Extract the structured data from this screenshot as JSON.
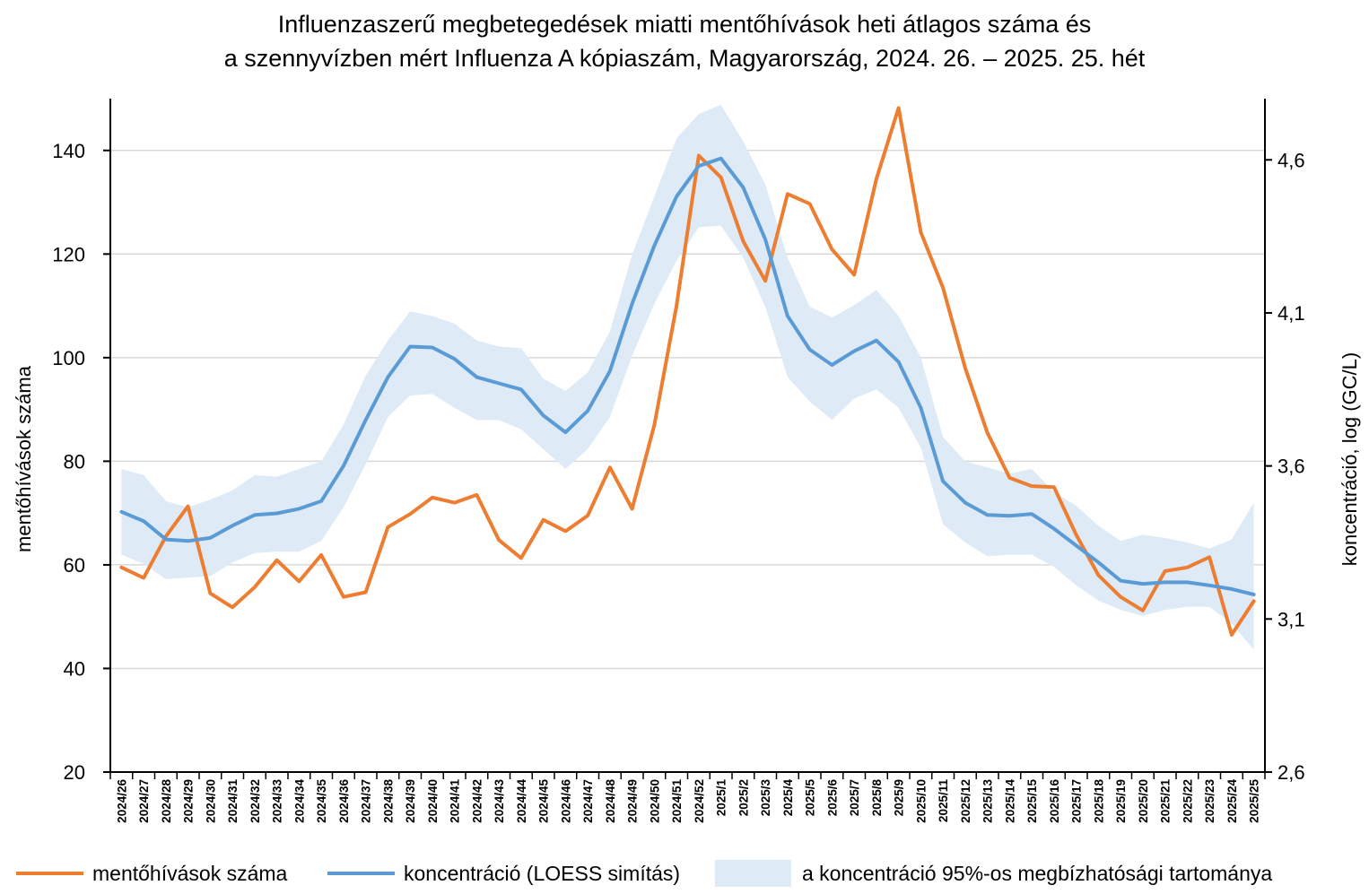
{
  "title_line1": "Influenzaszerű megbetegedések miatti mentőhívások heti átlagos száma és",
  "title_line2": "a szennyvízben mért Influenza A kópiaszám, Magyarország, 2024. 26. – 2025. 25. hét",
  "colors": {
    "calls": "#ED7D31",
    "conc": "#5B9BD5",
    "band": "#DEEBF7",
    "grid": "#D9D9D9"
  },
  "chart_data": {
    "type": "line",
    "title": "Influenzaszerű megbetegedések miatti mentőhívások heti átlagos száma és a szennyvízben mért Influenza A kópiaszám, Magyarország, 2024. 26. – 2025. 25. hét",
    "ylabel": "mentőhívások száma",
    "y2label": "koncentráció, log (GC/L)",
    "ylim": [
      20,
      150
    ],
    "yticks": [
      20,
      40,
      60,
      80,
      100,
      120,
      140
    ],
    "y2lim": [
      2.6,
      4.8
    ],
    "y2ticks": [
      2.6,
      3.1,
      3.6,
      4.1,
      4.6
    ],
    "y2ticklabels": [
      "2,6",
      "3,1",
      "3,6",
      "4,1",
      "4,6"
    ],
    "grid": true,
    "legend_position": "bottom",
    "categories": [
      "2024/26",
      "2024/27",
      "2024/28",
      "2024/29",
      "2024/30",
      "2024/31",
      "2024/32",
      "2024/33",
      "2024/34",
      "2024/35",
      "2024/36",
      "2024/37",
      "2024/38",
      "2024/39",
      "2024/40",
      "2024/41",
      "2024/42",
      "2024/43",
      "2024/44",
      "2024/45",
      "2024/46",
      "2024/47",
      "2024/48",
      "2024/49",
      "2024/50",
      "2024/51",
      "2024/52",
      "2025/1",
      "2025/2",
      "2025/3",
      "2025/4",
      "2025/5",
      "2025/6",
      "2025/7",
      "2025/8",
      "2025/9",
      "2025/10",
      "2025/11",
      "2025/12",
      "2025/13",
      "2025/14",
      "2025/15",
      "2025/16",
      "2025/17",
      "2025/18",
      "2025/19",
      "2025/20",
      "2025/21",
      "2025/22",
      "2025/23",
      "2025/24",
      "2025/25"
    ],
    "series": [
      {
        "name": "mentőhívások száma",
        "axis": "left",
        "color": "#ED7D31",
        "values": [
          59.5,
          57.5,
          65.5,
          71.3,
          54.5,
          51.8,
          55.7,
          60.9,
          56.8,
          61.9,
          53.8,
          54.7,
          67.3,
          69.8,
          73.0,
          72.0,
          73.5,
          64.8,
          61.3,
          68.7,
          66.5,
          69.5,
          78.8,
          70.8,
          87.0,
          110.0,
          139.0,
          134.8,
          122.5,
          114.8,
          131.6,
          129.7,
          120.9,
          116.0,
          134.5,
          148.2,
          124.2,
          113.5,
          98.0,
          85.5,
          76.8,
          75.2,
          75.0,
          65.8,
          58.0,
          53.8,
          51.2,
          58.8,
          59.5,
          61.5,
          46.5,
          53.0
        ]
      },
      {
        "name": "koncentráció (LOESS simítás)",
        "axis": "right",
        "color": "#5B9BD5",
        "values": [
          3.45,
          3.42,
          3.36,
          3.355,
          3.365,
          3.405,
          3.44,
          3.445,
          3.46,
          3.485,
          3.6,
          3.75,
          3.89,
          3.99,
          3.987,
          3.95,
          3.89,
          3.87,
          3.85,
          3.765,
          3.71,
          3.78,
          3.91,
          4.13,
          4.32,
          4.48,
          4.58,
          4.605,
          4.51,
          4.34,
          4.09,
          3.98,
          3.93,
          3.975,
          4.01,
          3.94,
          3.79,
          3.55,
          3.48,
          3.44,
          3.437,
          3.443,
          3.395,
          3.34,
          3.285,
          3.225,
          3.215,
          3.22,
          3.22,
          3.21,
          3.198,
          3.18
        ]
      },
      {
        "name": "a koncentráció 95%-os megbízhatósági tartománya",
        "axis": "right",
        "type": "band",
        "color": "#DEEBF7",
        "lower": [
          3.31,
          3.28,
          3.23,
          3.235,
          3.24,
          3.285,
          3.315,
          3.32,
          3.32,
          3.355,
          3.465,
          3.605,
          3.76,
          3.83,
          3.835,
          3.79,
          3.75,
          3.75,
          3.72,
          3.655,
          3.59,
          3.655,
          3.76,
          3.96,
          4.13,
          4.27,
          4.38,
          4.385,
          4.28,
          4.12,
          3.89,
          3.81,
          3.75,
          3.82,
          3.85,
          3.79,
          3.66,
          3.41,
          3.35,
          3.305,
          3.31,
          3.31,
          3.27,
          3.21,
          3.16,
          3.13,
          3.11,
          3.13,
          3.14,
          3.14,
          3.085,
          3.0
        ],
        "upper": [
          3.59,
          3.57,
          3.485,
          3.465,
          3.49,
          3.52,
          3.57,
          3.565,
          3.59,
          3.615,
          3.735,
          3.895,
          4.01,
          4.105,
          4.09,
          4.065,
          4.01,
          3.99,
          3.985,
          3.885,
          3.845,
          3.905,
          4.04,
          4.29,
          4.48,
          4.67,
          4.75,
          4.78,
          4.66,
          4.52,
          4.28,
          4.12,
          4.085,
          4.125,
          4.175,
          4.09,
          3.955,
          3.695,
          3.615,
          3.595,
          3.575,
          3.59,
          3.515,
          3.47,
          3.405,
          3.355,
          3.375,
          3.365,
          3.35,
          3.33,
          3.36,
          3.48
        ]
      }
    ]
  },
  "legend": {
    "calls_label": "mentőhívások száma",
    "conc_label": "koncentráció (LOESS simítás)",
    "band_label": "a koncentráció 95%-os megbízhatósági tartománya"
  }
}
